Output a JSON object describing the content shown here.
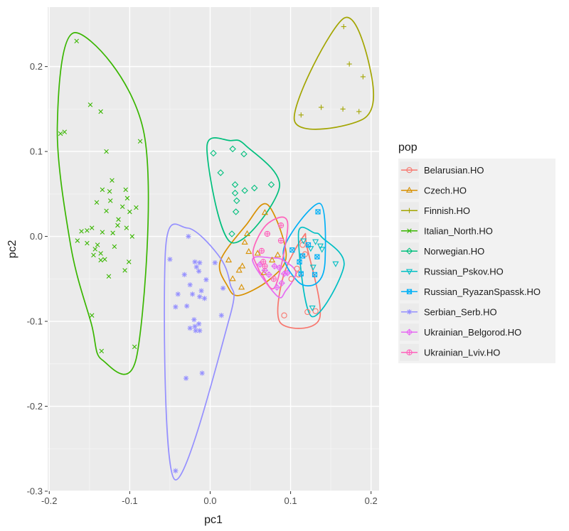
{
  "chart_data": {
    "type": "scatter",
    "xlabel": "pc1",
    "ylabel": "pc2",
    "xlim": [
      -0.202,
      0.21
    ],
    "ylim": [
      -0.3,
      0.27
    ],
    "x_ticks": [
      -0.2,
      -0.1,
      0.0,
      0.1,
      0.2
    ],
    "x_tick_labels": [
      "-0.2",
      "-0.1",
      "0.0",
      "0.1",
      "0.2"
    ],
    "y_ticks": [
      -0.3,
      -0.2,
      -0.1,
      0.0,
      0.1,
      0.2
    ],
    "y_tick_labels": [
      "-0.3",
      "-0.2",
      "-0.1",
      "0.0",
      "0.1",
      "0.2"
    ],
    "grid": true,
    "legend_title": "pop",
    "legend_position": "right",
    "series": [
      {
        "name": "Belarusian.HO",
        "color": "#F8766D",
        "shape": "circle",
        "points": [
          [
            0.092,
            -0.093
          ],
          [
            0.121,
            -0.089
          ],
          [
            0.131,
            -0.088
          ],
          [
            0.108,
            -0.038
          ],
          [
            0.11,
            -0.045
          ],
          [
            0.118,
            -0.021
          ],
          [
            0.115,
            -0.01
          ],
          [
            0.101,
            -0.05
          ]
        ]
      },
      {
        "name": "Czech.HO",
        "color": "#D89000",
        "shape": "triangle",
        "points": [
          [
            0.068,
            0.028
          ],
          [
            0.046,
            0.003
          ],
          [
            0.043,
            -0.007
          ],
          [
            0.048,
            -0.018
          ],
          [
            0.059,
            -0.02
          ],
          [
            0.023,
            -0.028
          ],
          [
            0.04,
            -0.035
          ],
          [
            0.036,
            -0.04
          ],
          [
            0.028,
            -0.05
          ],
          [
            0.039,
            -0.06
          ],
          [
            0.067,
            -0.043
          ],
          [
            0.077,
            -0.028
          ],
          [
            0.084,
            -0.022
          ]
        ]
      },
      {
        "name": "Finnish.HO",
        "color": "#A3A500",
        "shape": "plus",
        "points": [
          [
            0.166,
            0.247
          ],
          [
            0.173,
            0.203
          ],
          [
            0.19,
            0.188
          ],
          [
            0.113,
            0.143
          ],
          [
            0.138,
            0.152
          ],
          [
            0.165,
            0.15
          ],
          [
            0.185,
            0.147
          ]
        ]
      },
      {
        "name": "Italian_North.HO",
        "color": "#39B600",
        "shape": "x",
        "points": [
          [
            -0.166,
            0.23
          ],
          [
            -0.149,
            0.155
          ],
          [
            -0.136,
            0.147
          ],
          [
            -0.181,
            0.123
          ],
          [
            -0.186,
            0.121
          ],
          [
            -0.087,
            0.112
          ],
          [
            -0.129,
            0.1
          ],
          [
            -0.122,
            0.066
          ],
          [
            -0.134,
            0.055
          ],
          [
            -0.125,
            0.053
          ],
          [
            -0.105,
            0.055
          ],
          [
            -0.103,
            0.045
          ],
          [
            -0.109,
            0.035
          ],
          [
            -0.1,
            0.029
          ],
          [
            -0.124,
            0.042
          ],
          [
            -0.141,
            0.04
          ],
          [
            -0.129,
            0.03
          ],
          [
            -0.092,
            0.034
          ],
          [
            -0.114,
            0.02
          ],
          [
            -0.115,
            0.013
          ],
          [
            -0.147,
            0.01
          ],
          [
            -0.153,
            0.007
          ],
          [
            -0.134,
            0.005
          ],
          [
            -0.16,
            0.006
          ],
          [
            -0.165,
            -0.005
          ],
          [
            -0.121,
            0.004
          ],
          [
            -0.104,
            0.01
          ],
          [
            -0.097,
            0.0
          ],
          [
            -0.119,
            -0.012
          ],
          [
            -0.153,
            -0.008
          ],
          [
            -0.14,
            -0.01
          ],
          [
            -0.143,
            -0.015
          ],
          [
            -0.136,
            -0.02
          ],
          [
            -0.145,
            -0.022
          ],
          [
            -0.106,
            -0.04
          ],
          [
            -0.131,
            -0.027
          ],
          [
            -0.136,
            -0.028
          ],
          [
            -0.101,
            -0.03
          ],
          [
            -0.126,
            -0.047
          ],
          [
            -0.147,
            -0.093
          ],
          [
            -0.135,
            -0.135
          ],
          [
            -0.094,
            -0.13
          ]
        ]
      },
      {
        "name": "Norwegian.HO",
        "color": "#00BF7D",
        "shape": "diamond",
        "points": [
          [
            0.004,
            0.098
          ],
          [
            0.028,
            0.103
          ],
          [
            0.042,
            0.097
          ],
          [
            0.013,
            0.075
          ],
          [
            0.031,
            0.061
          ],
          [
            0.031,
            0.051
          ],
          [
            0.043,
            0.054
          ],
          [
            0.055,
            0.057
          ],
          [
            0.076,
            0.061
          ],
          [
            0.033,
            0.042
          ],
          [
            0.032,
            0.029
          ],
          [
            0.027,
            0.003
          ]
        ]
      },
      {
        "name": "Russian_Pskov.HO",
        "color": "#00BFC4",
        "shape": "triangle-down",
        "points": [
          [
            0.125,
            -0.014
          ],
          [
            0.137,
            -0.011
          ],
          [
            0.139,
            -0.015
          ],
          [
            0.156,
            -0.032
          ],
          [
            0.128,
            -0.036
          ],
          [
            0.127,
            -0.084
          ],
          [
            0.131,
            -0.006
          ],
          [
            0.116,
            -0.005
          ]
        ]
      },
      {
        "name": "Russian_RyazanSpassk.HO",
        "color": "#00B0F6",
        "shape": "square-cross",
        "points": [
          [
            0.134,
            0.029
          ],
          [
            0.115,
            -0.023
          ],
          [
            0.111,
            -0.03
          ],
          [
            0.13,
            -0.045
          ],
          [
            0.133,
            -0.024
          ],
          [
            0.122,
            -0.01
          ],
          [
            0.102,
            -0.016
          ],
          [
            0.113,
            -0.044
          ]
        ]
      },
      {
        "name": "Serbian_Serb.HO",
        "color": "#9590FF",
        "shape": "asterisk",
        "points": [
          [
            -0.027,
            0.0
          ],
          [
            -0.05,
            -0.027
          ],
          [
            -0.019,
            -0.03
          ],
          [
            -0.017,
            -0.036
          ],
          [
            -0.013,
            -0.031
          ],
          [
            -0.014,
            -0.041
          ],
          [
            -0.032,
            -0.045
          ],
          [
            -0.005,
            -0.051
          ],
          [
            -0.025,
            -0.057
          ],
          [
            -0.011,
            -0.064
          ],
          [
            -0.022,
            -0.068
          ],
          [
            -0.007,
            -0.073
          ],
          [
            -0.013,
            -0.071
          ],
          [
            -0.029,
            -0.082
          ],
          [
            -0.043,
            -0.083
          ],
          [
            -0.02,
            -0.098
          ],
          [
            -0.014,
            -0.103
          ],
          [
            -0.019,
            -0.106
          ],
          [
            -0.025,
            -0.108
          ],
          [
            -0.018,
            -0.111
          ],
          [
            -0.013,
            -0.111
          ],
          [
            0.014,
            -0.093
          ],
          [
            -0.04,
            -0.068
          ],
          [
            0.016,
            -0.061
          ],
          [
            0.006,
            -0.031
          ],
          [
            -0.03,
            -0.167
          ],
          [
            -0.01,
            -0.161
          ],
          [
            -0.043,
            -0.276
          ]
        ]
      },
      {
        "name": "Ukrainian_Belgorod.HO",
        "color": "#E76BF3",
        "shape": "diamond-plus",
        "points": [
          [
            0.062,
            -0.033
          ],
          [
            0.068,
            -0.04
          ],
          [
            0.08,
            -0.035
          ],
          [
            0.086,
            -0.037
          ],
          [
            0.073,
            -0.045
          ],
          [
            0.092,
            -0.044
          ],
          [
            0.089,
            -0.055
          ],
          [
            0.083,
            -0.06
          ],
          [
            0.096,
            -0.043
          ]
        ]
      },
      {
        "name": "Ukrainian_Lviv.HO",
        "color": "#FF62BC",
        "shape": "circle-plus",
        "points": [
          [
            0.088,
            0.013
          ],
          [
            0.071,
            0.003
          ],
          [
            0.064,
            -0.017
          ],
          [
            0.068,
            -0.035
          ],
          [
            0.079,
            -0.05
          ],
          [
            0.066,
            -0.03
          ],
          [
            0.088,
            -0.005
          ]
        ]
      }
    ]
  }
}
